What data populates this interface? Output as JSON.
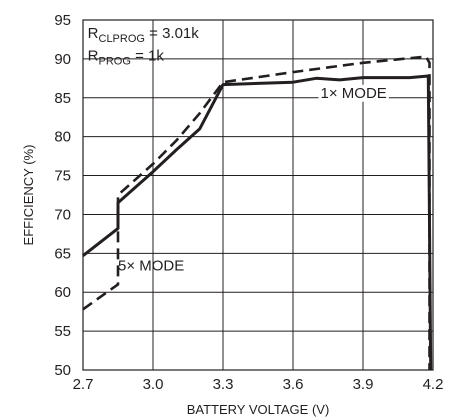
{
  "chart_data": {
    "type": "line",
    "title": "",
    "xlabel": "BATTERY VOLTAGE (V)",
    "ylabel": "EFFICIENCY (%)",
    "xlim": [
      2.7,
      4.2
    ],
    "ylim": [
      50,
      95
    ],
    "x_ticks": [
      2.7,
      3.0,
      3.3,
      3.6,
      3.9,
      4.2
    ],
    "x_tick_labels": [
      "2.7",
      "3.0",
      "3.3",
      "3.6",
      "3.9",
      "4.2"
    ],
    "y_ticks": [
      50,
      55,
      60,
      65,
      70,
      75,
      80,
      85,
      90,
      95
    ],
    "y_tick_labels": [
      "50",
      "55",
      "60",
      "65",
      "70",
      "75",
      "80",
      "85",
      "90",
      "95"
    ],
    "grid": true,
    "series": [
      {
        "style": "solid",
        "color": "#231f20",
        "points": [
          [
            2.7,
            64.7
          ],
          [
            2.85,
            68.2
          ],
          [
            2.85,
            71.5
          ],
          [
            3.0,
            75.5
          ],
          [
            3.1,
            78.3
          ],
          [
            3.2,
            81.0
          ],
          [
            3.3,
            86.7
          ],
          [
            3.6,
            87.0
          ],
          [
            3.7,
            87.5
          ],
          [
            3.8,
            87.3
          ],
          [
            3.9,
            87.6
          ],
          [
            4.0,
            87.6
          ],
          [
            4.1,
            87.6
          ],
          [
            4.18,
            87.8
          ],
          [
            4.19,
            50.0
          ]
        ]
      },
      {
        "style": "dashed",
        "color": "#231f20",
        "points": [
          [
            2.7,
            57.8
          ],
          [
            2.85,
            61.0
          ],
          [
            2.85,
            72.5
          ],
          [
            3.0,
            76.5
          ],
          [
            3.1,
            79.5
          ],
          [
            3.2,
            83.0
          ],
          [
            3.3,
            87.0
          ],
          [
            3.6,
            88.3
          ],
          [
            3.9,
            89.5
          ],
          [
            4.17,
            90.3
          ],
          [
            4.185,
            89.5
          ],
          [
            4.185,
            50.0
          ]
        ]
      }
    ],
    "annotations": {
      "r_clprog": {
        "main": "R",
        "sub": "CLPROG",
        "tail": " = 3.01k",
        "x": 2.72,
        "y": 92.7
      },
      "r_prog": {
        "main": "R",
        "sub": "PROG",
        "tail": " = 1k",
        "x": 2.72,
        "y": 89.8
      },
      "mode_1x": {
        "text": "1× MODE",
        "x": 3.86,
        "y": 85.0
      },
      "mode_5x": {
        "text": "5× MODE",
        "x": 2.85,
        "y": 62.8
      }
    }
  }
}
